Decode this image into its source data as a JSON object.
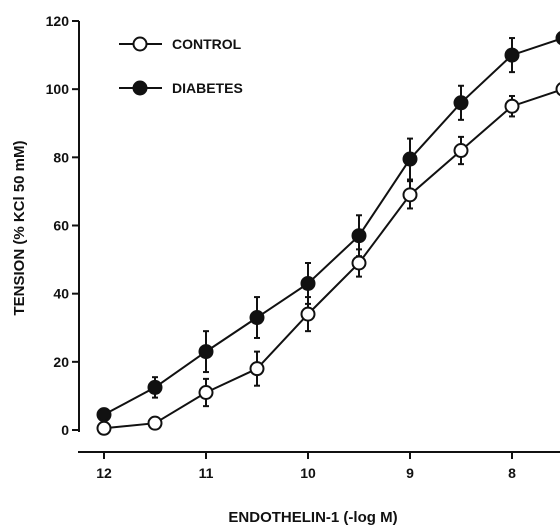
{
  "chart_data": {
    "type": "line",
    "xlabel": "ENDOTHELIN-1 (-log M)",
    "ylabel": "TENSION (% KCl 50 mM)",
    "x_ticks": [
      12,
      11,
      10,
      9,
      8
    ],
    "y_ticks": [
      0,
      20,
      40,
      60,
      80,
      100,
      120
    ],
    "xlim": [
      12,
      7.5
    ],
    "ylim": [
      0,
      120
    ],
    "legend_position": "top-left",
    "x": [
      12,
      11.5,
      11,
      10.5,
      10,
      9.5,
      9,
      8.5,
      8,
      7.5
    ],
    "series": [
      {
        "name": "CONTROL",
        "marker": "open-circle",
        "color": "#111111",
        "values": [
          0.5,
          2,
          11,
          18,
          34,
          49,
          69,
          82,
          95,
          100
        ],
        "errors": [
          0,
          1,
          4,
          5,
          5,
          4,
          4,
          4,
          3,
          3
        ]
      },
      {
        "name": "DIABETES",
        "marker": "filled-circle",
        "color": "#111111",
        "values": [
          4.5,
          12.5,
          23,
          33,
          43,
          57,
          79.5,
          96,
          110,
          115
        ],
        "errors": [
          0,
          3,
          6,
          6,
          6,
          6,
          6,
          5,
          5,
          4
        ]
      }
    ]
  }
}
